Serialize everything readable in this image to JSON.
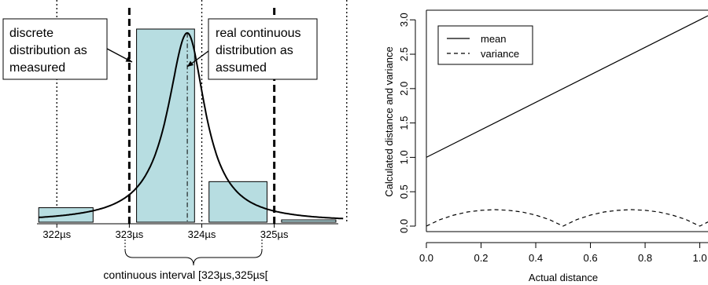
{
  "chart_data": [
    {
      "type": "bar",
      "x_ticks": [
        "322µs",
        "323µs",
        "324µs",
        "325µs"
      ],
      "bars": [
        {
          "from": 321.75,
          "to": 322.5,
          "value": 0.075
        },
        {
          "from": 323.1,
          "to": 323.9,
          "value": 1.0
        },
        {
          "from": 324.1,
          "to": 324.9,
          "value": 0.21
        },
        {
          "from": 325.1,
          "to": 325.85,
          "value": 0.012
        }
      ],
      "curve_peak_x": 323.8,
      "curve_peak_value": 0.98,
      "peak_marker_x": 323.8,
      "dotted_lines_x": [
        322,
        324,
        326
      ],
      "dashed_lines_x": [
        323,
        325
      ],
      "xlim": [
        321.65,
        326.1
      ],
      "annotations": {
        "left": [
          "discrete",
          "distribution as",
          "measured"
        ],
        "right": [
          "real continuous",
          "distribution as",
          "assumed"
        ],
        "bottom": "continuous interval [323µs,325µs["
      }
    },
    {
      "type": "line",
      "xlabel": "Actual distance",
      "ylabel": "Calculated distance and variance",
      "xlim": [
        0,
        1.03
      ],
      "ylim": [
        -0.08,
        3.14
      ],
      "x_ticks": [
        0.0,
        0.2,
        0.4,
        0.6,
        0.8,
        1.0
      ],
      "x_tick_labels": [
        "0.0",
        "0.2",
        "0.4",
        "0.6",
        "0.8",
        "1.0"
      ],
      "y_ticks": [
        0.0,
        0.5,
        1.0,
        1.5,
        2.0,
        2.5,
        3.0
      ],
      "y_tick_labels": [
        "0.0",
        "0.5",
        "1.0",
        "1.5",
        "2.0",
        "2.5",
        "3.0"
      ],
      "legend": {
        "position": "top-left"
      },
      "series": [
        {
          "name": "mean",
          "style": "solid",
          "x": [
            0.0,
            1.03
          ],
          "y": [
            1.0,
            3.06
          ]
        },
        {
          "name": "variance",
          "style": "dashed",
          "x": [
            0.0,
            0.05,
            0.1,
            0.15,
            0.2,
            0.25,
            0.3,
            0.35,
            0.4,
            0.45,
            0.5,
            0.55,
            0.6,
            0.65,
            0.7,
            0.75,
            0.8,
            0.85,
            0.9,
            0.95,
            1.0,
            1.03
          ],
          "y": [
            0.0,
            0.095,
            0.16,
            0.205,
            0.23,
            0.24,
            0.23,
            0.205,
            0.16,
            0.095,
            0.0,
            0.095,
            0.16,
            0.205,
            0.23,
            0.24,
            0.23,
            0.205,
            0.16,
            0.095,
            0.0,
            0.06
          ]
        }
      ]
    }
  ],
  "colors": {
    "bar_fill": "#b7dde1",
    "bar_stroke": "#000000",
    "line": "#000000"
  }
}
